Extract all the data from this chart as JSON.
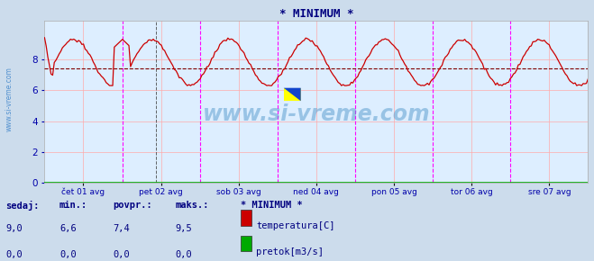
{
  "title": "* MINIMUM *",
  "title_color": "#000080",
  "bg_color": "#ccdcec",
  "plot_bg_color": "#ddeeff",
  "grid_color": "#ffaaaa",
  "avg_line_color": "#800000",
  "avg_line_value": 7.4,
  "ylim": [
    0,
    10.5
  ],
  "yticks": [
    0,
    2,
    4,
    6,
    8
  ],
  "xlabel_color": "#0000aa",
  "ylabel_color": "#0000aa",
  "tick_labels": [
    "čet 01 avg",
    "pet 02 avg",
    "sob 03 avg",
    "ned 04 avg",
    "pon 05 avg",
    "tor 06 avg",
    "sre 07 avg"
  ],
  "vline_color_magenta": "#ff00ff",
  "vline_color_black": "#404040",
  "temp_color": "#cc0000",
  "flow_color": "#00aa00",
  "watermark_text": "www.si-vreme.com",
  "watermark_color": "#5599cc",
  "sidebar_text": "www.si-vreme.com",
  "sidebar_color": "#4488cc",
  "legend_title": "* MINIMUM *",
  "legend_title_color": "#000080",
  "legend_labels": [
    "temperatura[C]",
    "pretok[m3/s]"
  ],
  "legend_colors": [
    "#cc0000",
    "#00aa00"
  ],
  "table_headers": [
    "sedaj:",
    "min.:",
    "povpr.:",
    "maks.:"
  ],
  "table_values_temp": [
    "9,0",
    "6,6",
    "7,4",
    "9,5"
  ],
  "table_values_flow": [
    "0,0",
    "0,0",
    "0,0",
    "0,0"
  ],
  "table_color": "#000080",
  "n_points": 336,
  "days": 7
}
